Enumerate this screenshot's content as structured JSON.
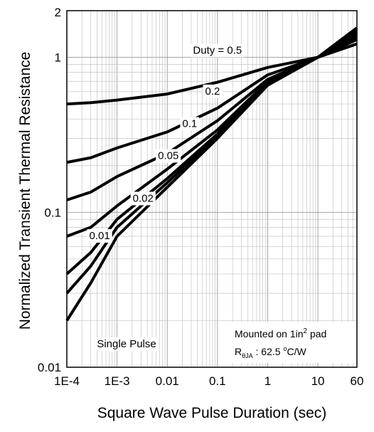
{
  "chart_data": {
    "type": "line",
    "xlabel": "Square Wave Pulse Duration (sec)",
    "ylabel": "Normalized Transient Thermal Resistance",
    "x_scale": "log",
    "y_scale": "log",
    "xlim": [
      0.0001,
      60
    ],
    "ylim": [
      0.01,
      2
    ],
    "grid": true,
    "x_ticks": [
      {
        "value": 0.0001,
        "label": "1E-4"
      },
      {
        "value": 0.001,
        "label": "1E-3"
      },
      {
        "value": 0.01,
        "label": "0.01"
      },
      {
        "value": 0.1,
        "label": "0.1"
      },
      {
        "value": 1,
        "label": "1"
      },
      {
        "value": 10,
        "label": "10"
      },
      {
        "value": 60,
        "label": "60"
      }
    ],
    "y_ticks": [
      {
        "value": 0.01,
        "label": "0.01"
      },
      {
        "value": 0.1,
        "label": "0.1"
      },
      {
        "value": 1,
        "label": "1"
      },
      {
        "value": 2,
        "label": "2"
      }
    ],
    "series": [
      {
        "name": "Duty = 0.5",
        "x": [
          0.0001,
          0.0003,
          0.001,
          0.01,
          0.1,
          1,
          10,
          60
        ],
        "y": [
          0.5,
          0.51,
          0.53,
          0.58,
          0.69,
          0.86,
          1.0,
          1.22
        ]
      },
      {
        "name": "0.2",
        "x": [
          0.0001,
          0.0003,
          0.001,
          0.01,
          0.1,
          1,
          10,
          60
        ],
        "y": [
          0.21,
          0.225,
          0.26,
          0.33,
          0.47,
          0.77,
          1.0,
          1.3
        ]
      },
      {
        "name": "0.1",
        "x": [
          0.0001,
          0.0003,
          0.001,
          0.01,
          0.1,
          1,
          10,
          60
        ],
        "y": [
          0.12,
          0.135,
          0.17,
          0.24,
          0.39,
          0.72,
          1.0,
          1.35
        ]
      },
      {
        "name": "0.05",
        "x": [
          0.0001,
          0.0003,
          0.001,
          0.01,
          0.1,
          1,
          10,
          60
        ],
        "y": [
          0.07,
          0.08,
          0.11,
          0.19,
          0.34,
          0.7,
          1.0,
          1.4
        ]
      },
      {
        "name": "0.02",
        "x": [
          0.0001,
          0.0003,
          0.001,
          0.01,
          0.1,
          1,
          10,
          60
        ],
        "y": [
          0.04,
          0.055,
          0.09,
          0.165,
          0.32,
          0.68,
          1.0,
          1.45
        ]
      },
      {
        "name": "0.01",
        "x": [
          0.0001,
          0.0003,
          0.001,
          0.01,
          0.1,
          1,
          10,
          60
        ],
        "y": [
          0.03,
          0.045,
          0.08,
          0.155,
          0.31,
          0.67,
          1.0,
          1.48
        ]
      },
      {
        "name": "Single Pulse",
        "x": [
          0.0001,
          0.0003,
          0.001,
          0.01,
          0.1,
          1,
          10,
          60
        ],
        "y": [
          0.02,
          0.035,
          0.07,
          0.145,
          0.3,
          0.66,
          1.0,
          1.55
        ]
      }
    ],
    "curve_labels": [
      {
        "text": "Duty =  0.5",
        "x": 0.1,
        "y": 1.1
      },
      {
        "text": "0.2",
        "x": 0.08,
        "y": 0.6
      },
      {
        "text": "0.1",
        "x": 0.028,
        "y": 0.37
      },
      {
        "text": "0.05",
        "x": 0.0105,
        "y": 0.23
      },
      {
        "text": "0.02",
        "x": 0.0033,
        "y": 0.122
      },
      {
        "text": "0.01",
        "x": 0.00045,
        "y": 0.07
      },
      {
        "text": "Single Pulse",
        "x": 0.00155,
        "y": 0.014
      }
    ],
    "annotation": {
      "line1_prefix": "Mounted on 1in",
      "line1_sup": "2",
      "line1_suffix": " pad",
      "line2_sym": "R",
      "line2_sub": "θJA",
      "line2_value": " : 62.5 ",
      "line2_deg": "o",
      "line2_unit": "C/W"
    }
  }
}
